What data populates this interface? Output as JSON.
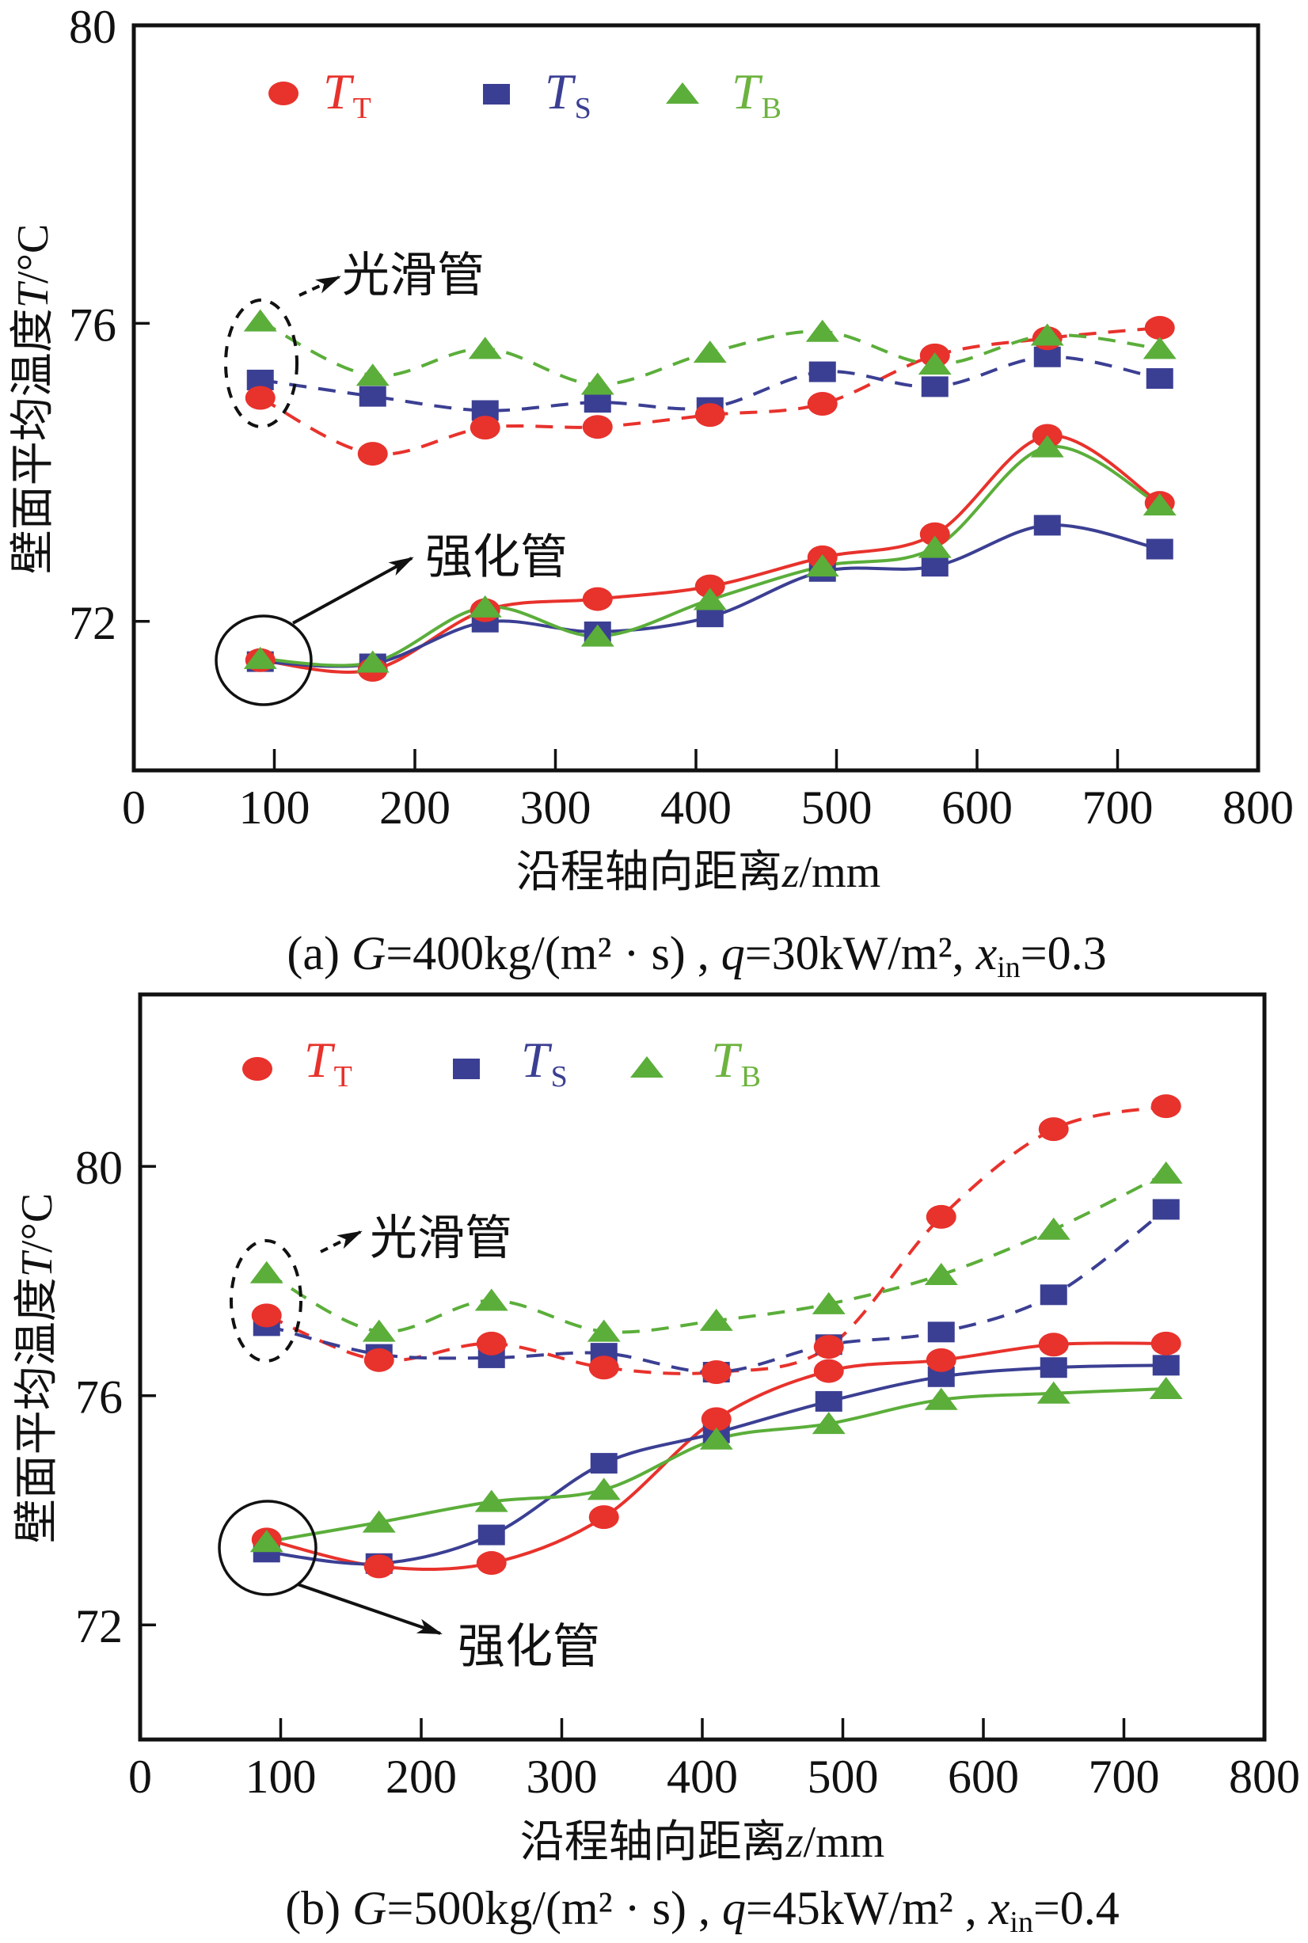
{
  "figure": {
    "background": "#FFFFFF",
    "panel_count": 2
  },
  "chart_data": [
    {
      "type": "line",
      "panel": "a",
      "title": "",
      "caption": {
        "label": "(a) ",
        "G_symbol": "G",
        "G_value": "=400kg/(m² · s) , ",
        "q_symbol": "q",
        "q_value": "=30kW/m², ",
        "x_symbol": "x",
        "x_subscript": "in",
        "x_value": "=0.3"
      },
      "xlabel": {
        "text": "沿程轴向距离",
        "symbol": "z",
        "unit": "/mm"
      },
      "ylabel": {
        "text": "壁面平均温度",
        "symbol": "T",
        "unit": "/°C"
      },
      "xlim": [
        0,
        800
      ],
      "ylim": [
        70,
        80
      ],
      "xticks": [
        0,
        100,
        200,
        300,
        400,
        500,
        600,
        700,
        800
      ],
      "yticks": [
        72,
        76,
        80
      ],
      "grid": false,
      "legend": {
        "position": "top-left",
        "orientation": "horizontal",
        "entries": [
          {
            "symbol": "T",
            "subscript": "T",
            "marker": "circle",
            "color": "#E8322C",
            "text_color": "#E8322C"
          },
          {
            "symbol": "T",
            "subscript": "S",
            "marker": "square",
            "color": "#3B3F93",
            "text_color": "#3B3F93"
          },
          {
            "symbol": "T",
            "subscript": "B",
            "marker": "triangle",
            "color": "#5BAE3A",
            "text_color": "#6DB33F"
          }
        ]
      },
      "annotations": [
        {
          "text": "光滑管",
          "refers_to": "smooth tube (dashed lines)",
          "style": "dashed-ellipse-with-arrow"
        },
        {
          "text": "强化管",
          "refers_to": "enhanced tube (solid lines)",
          "style": "circle-with-arrow"
        }
      ],
      "x": [
        90,
        170,
        250,
        330,
        410,
        490,
        570,
        650,
        730
      ],
      "series": [
        {
          "id": "tt-smooth",
          "name": "T_T",
          "group": "光滑管",
          "line_style": "dashed",
          "marker": "circle",
          "color": "#E8322C",
          "values": [
            75.0,
            74.25,
            74.6,
            74.61,
            74.77,
            74.92,
            75.57,
            75.8,
            75.94
          ]
        },
        {
          "id": "ts-smooth",
          "name": "T_S",
          "group": "光滑管",
          "line_style": "dashed",
          "marker": "square",
          "color": "#3B3F93",
          "values": [
            75.24,
            75.02,
            74.83,
            74.94,
            74.87,
            75.35,
            75.15,
            75.55,
            75.26
          ]
        },
        {
          "id": "tb-smooth",
          "name": "T_B",
          "group": "光滑管",
          "line_style": "dashed",
          "marker": "triangle",
          "color": "#5BAE3A",
          "values": [
            76.03,
            75.3,
            75.66,
            75.18,
            75.61,
            75.89,
            75.45,
            75.84,
            75.66
          ]
        },
        {
          "id": "tt-enhanced",
          "name": "T_T",
          "group": "强化管",
          "line_style": "solid",
          "marker": "circle",
          "color": "#E8322C",
          "values": [
            71.48,
            71.35,
            72.15,
            72.3,
            72.47,
            72.86,
            73.17,
            74.49,
            73.59
          ]
        },
        {
          "id": "ts-enhanced",
          "name": "T_S",
          "group": "强化管",
          "line_style": "solid",
          "marker": "square",
          "color": "#3B3F93",
          "values": [
            71.46,
            71.43,
            71.99,
            71.86,
            72.06,
            72.67,
            72.74,
            73.29,
            72.97
          ]
        },
        {
          "id": "tb-enhanced",
          "name": "T_B",
          "group": "强化管",
          "line_style": "solid",
          "marker": "triangle",
          "color": "#5BAE3A",
          "values": [
            71.5,
            71.45,
            72.19,
            71.8,
            72.29,
            72.74,
            72.99,
            74.34,
            73.56
          ]
        }
      ]
    },
    {
      "type": "line",
      "panel": "b",
      "title": "",
      "caption": {
        "label": "(b) ",
        "G_symbol": "G",
        "G_value": "=500kg/(m² · s) , ",
        "q_symbol": "q",
        "q_value": "=45kW/m² , ",
        "x_symbol": "x",
        "x_subscript": "in",
        "x_value": "=0.4"
      },
      "xlabel": {
        "text": "沿程轴向距离",
        "symbol": "z",
        "unit": "/mm"
      },
      "ylabel": {
        "text": "壁面平均温度",
        "symbol": "T",
        "unit": "/°C"
      },
      "xlim": [
        0,
        800
      ],
      "ylim": [
        70,
        83
      ],
      "xticks": [
        0,
        100,
        200,
        300,
        400,
        500,
        600,
        700,
        800
      ],
      "yticks": [
        72,
        76,
        80
      ],
      "grid": false,
      "legend": {
        "position": "top-left",
        "orientation": "horizontal",
        "entries": [
          {
            "symbol": "T",
            "subscript": "T",
            "marker": "circle",
            "color": "#E8322C",
            "text_color": "#E8322C"
          },
          {
            "symbol": "T",
            "subscript": "S",
            "marker": "square",
            "color": "#3B3F93",
            "text_color": "#3B3F93"
          },
          {
            "symbol": "T",
            "subscript": "B",
            "marker": "triangle",
            "color": "#5BAE3A",
            "text_color": "#6DB33F"
          }
        ]
      },
      "annotations": [
        {
          "text": "光滑管",
          "refers_to": "smooth tube (dashed lines)",
          "style": "dashed-ellipse-with-arrow"
        },
        {
          "text": "强化管",
          "refers_to": "enhanced tube (solid lines)",
          "style": "circle-with-arrow"
        }
      ],
      "x": [
        90,
        170,
        250,
        330,
        410,
        490,
        570,
        650,
        730
      ],
      "series": [
        {
          "id": "tt-smooth",
          "name": "T_T",
          "group": "光滑管",
          "line_style": "dashed",
          "marker": "circle",
          "color": "#E8322C",
          "values": [
            77.4,
            76.62,
            76.91,
            76.49,
            76.41,
            76.85,
            79.12,
            80.65,
            81.05
          ]
        },
        {
          "id": "ts-smooth",
          "name": "T_S",
          "group": "光滑管",
          "line_style": "dashed",
          "marker": "square",
          "color": "#3B3F93",
          "values": [
            77.22,
            76.72,
            76.66,
            76.74,
            76.41,
            76.89,
            77.11,
            77.76,
            79.25
          ]
        },
        {
          "id": "tb-smooth",
          "name": "T_B",
          "group": "光滑管",
          "line_style": "dashed",
          "marker": "triangle",
          "color": "#5BAE3A",
          "values": [
            78.14,
            77.12,
            77.66,
            77.12,
            77.31,
            77.6,
            78.11,
            78.9,
            79.88
          ]
        },
        {
          "id": "tt-enhanced",
          "name": "T_T",
          "group": "强化管",
          "line_style": "solid",
          "marker": "circle",
          "color": "#E8322C",
          "values": [
            73.49,
            73.02,
            73.08,
            73.88,
            75.59,
            76.43,
            76.62,
            76.89,
            76.91
          ]
        },
        {
          "id": "ts-enhanced",
          "name": "T_S",
          "group": "强化管",
          "line_style": "solid",
          "marker": "square",
          "color": "#3B3F93",
          "values": [
            73.27,
            73.07,
            73.57,
            74.82,
            75.35,
            75.9,
            76.33,
            76.49,
            76.53
          ]
        },
        {
          "id": "tb-enhanced",
          "name": "T_B",
          "group": "强化管",
          "line_style": "solid",
          "marker": "triangle",
          "color": "#5BAE3A",
          "values": [
            73.45,
            73.79,
            74.15,
            74.36,
            75.24,
            75.51,
            75.93,
            76.04,
            76.12
          ]
        }
      ]
    }
  ]
}
